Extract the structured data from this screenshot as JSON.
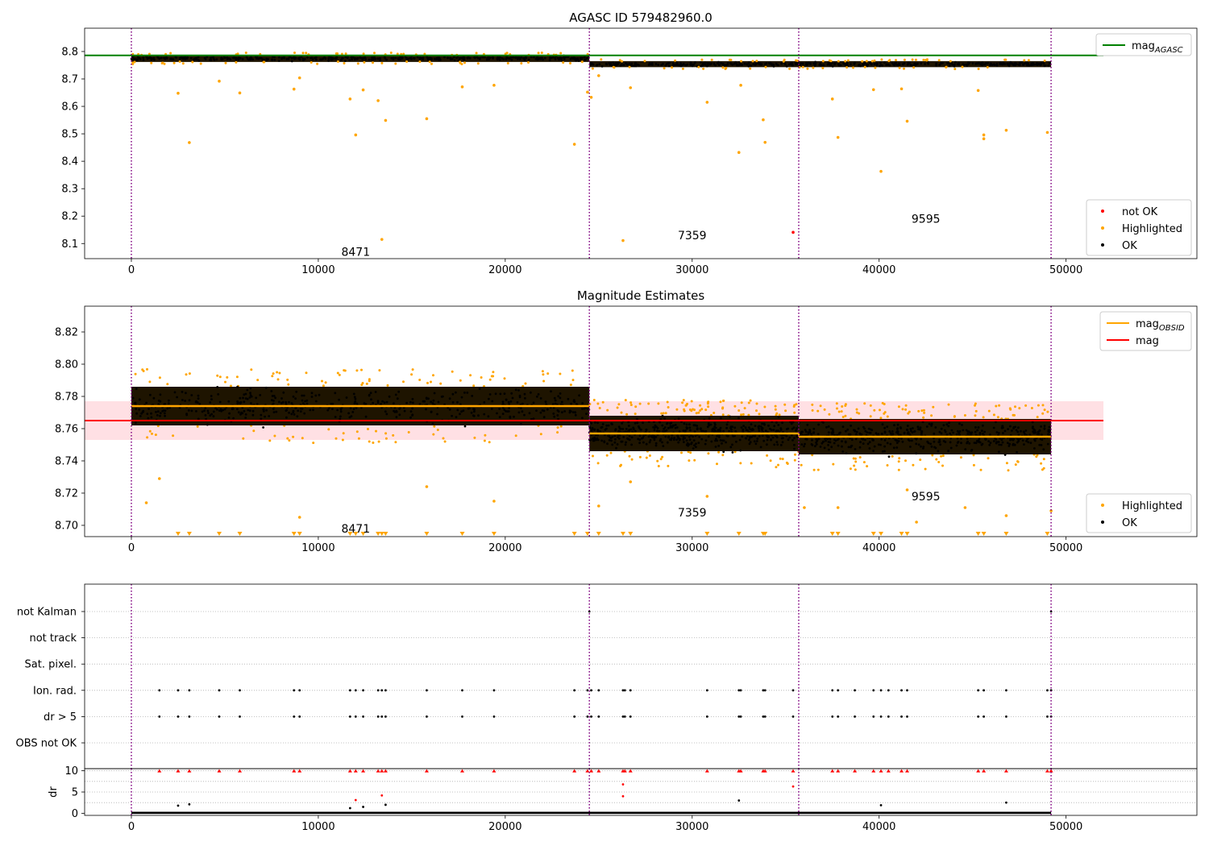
{
  "chart_data": [
    {
      "type": "scatter",
      "title": "AGASC ID 579482960.0",
      "xlim": [
        -2500,
        57000
      ],
      "ylim": [
        8.045,
        8.885
      ],
      "xticks": [
        0,
        10000,
        20000,
        30000,
        40000,
        50000
      ],
      "yticks": [
        8.1,
        8.2,
        8.3,
        8.4,
        8.5,
        8.6,
        8.7,
        8.8
      ],
      "ytick_labels": [
        "8.1",
        "8.2",
        "8.3",
        "8.4",
        "8.5",
        "8.6",
        "8.7",
        "8.8"
      ],
      "grid": false,
      "legends": [
        {
          "placement": "upper right",
          "entries": [
            {
              "label": "mag",
              "subscript": "AGASC",
              "color": "#008000",
              "marker": "line"
            }
          ]
        },
        {
          "placement": "lower right",
          "entries": [
            {
              "label": "not OK",
              "color": "#ff0000",
              "marker": "dot"
            },
            {
              "label": "Highlighted",
              "color": "#ffa500",
              "marker": "dot"
            },
            {
              "label": "OK",
              "color": "#000000",
              "marker": "dot"
            }
          ]
        }
      ],
      "obs_boundaries": [
        0,
        24500,
        35700,
        49200
      ],
      "obs_labels": [
        {
          "text": "8471",
          "x": 12000,
          "y": 8.07
        },
        {
          "text": "7359",
          "x": 30000,
          "y": 8.13
        },
        {
          "text": "9595",
          "x": 42500,
          "y": 8.19
        }
      ],
      "reference_lines": [
        {
          "name": "mag_AGASC",
          "y": 8.786,
          "x": [
            -2500,
            52000
          ],
          "color": "#008000"
        }
      ],
      "ok_band_segments": [
        {
          "x": [
            0,
            24500
          ],
          "center": 8.775,
          "half_width": 0.013
        },
        {
          "x": [
            24500,
            49200
          ],
          "center": 8.754,
          "half_width": 0.011
        }
      ],
      "highlighted_points": [
        {
          "x": 2500,
          "y": 8.648
        },
        {
          "x": 3100,
          "y": 8.468
        },
        {
          "x": 4700,
          "y": 8.692
        },
        {
          "x": 5800,
          "y": 8.649
        },
        {
          "x": 8700,
          "y": 8.663
        },
        {
          "x": 9000,
          "y": 8.704
        },
        {
          "x": 11700,
          "y": 8.627
        },
        {
          "x": 12000,
          "y": 8.496
        },
        {
          "x": 12400,
          "y": 8.66
        },
        {
          "x": 13200,
          "y": 8.621
        },
        {
          "x": 13400,
          "y": 8.115
        },
        {
          "x": 13600,
          "y": 8.549
        },
        {
          "x": 15800,
          "y": 8.555
        },
        {
          "x": 17700,
          "y": 8.671
        },
        {
          "x": 19400,
          "y": 8.677
        },
        {
          "x": 23700,
          "y": 8.462
        },
        {
          "x": 24400,
          "y": 8.652
        },
        {
          "x": 24600,
          "y": 8.633
        },
        {
          "x": 25000,
          "y": 8.712
        },
        {
          "x": 26300,
          "y": 8.111
        },
        {
          "x": 26700,
          "y": 8.668
        },
        {
          "x": 30800,
          "y": 8.615
        },
        {
          "x": 32500,
          "y": 8.432
        },
        {
          "x": 32600,
          "y": 8.677
        },
        {
          "x": 33800,
          "y": 8.551
        },
        {
          "x": 33900,
          "y": 8.469
        },
        {
          "x": 37500,
          "y": 8.627
        },
        {
          "x": 37800,
          "y": 8.487
        },
        {
          "x": 39700,
          "y": 8.661
        },
        {
          "x": 40100,
          "y": 8.363
        },
        {
          "x": 41200,
          "y": 8.664
        },
        {
          "x": 41500,
          "y": 8.546
        },
        {
          "x": 45300,
          "y": 8.658
        },
        {
          "x": 45600,
          "y": 8.496
        },
        {
          "x": 45600,
          "y": 8.482
        },
        {
          "x": 46800,
          "y": 8.513
        },
        {
          "x": 49000,
          "y": 8.505
        }
      ],
      "not_ok_points": [
        {
          "x": 35400,
          "y": 8.141
        }
      ]
    },
    {
      "type": "scatter",
      "title": "Magnitude Estimates",
      "xlim": [
        -2500,
        57000
      ],
      "ylim": [
        8.693,
        8.836
      ],
      "xticks": [
        0,
        10000,
        20000,
        30000,
        40000,
        50000
      ],
      "yticks": [
        8.7,
        8.72,
        8.74,
        8.76,
        8.78,
        8.8,
        8.82
      ],
      "ytick_labels": [
        "8.70",
        "8.72",
        "8.74",
        "8.76",
        "8.78",
        "8.80",
        "8.82"
      ],
      "grid": false,
      "legends": [
        {
          "placement": "upper right",
          "entries": [
            {
              "label": "mag",
              "subscript": "OBSID",
              "color": "#ffa500",
              "marker": "line"
            },
            {
              "label": "mag",
              "subscript": "",
              "color": "#ff0000",
              "marker": "line"
            }
          ]
        },
        {
          "placement": "lower right",
          "entries": [
            {
              "label": "Highlighted",
              "color": "#ffa500",
              "marker": "dot"
            },
            {
              "label": "OK",
              "color": "#000000",
              "marker": "dot"
            }
          ]
        }
      ],
      "obs_boundaries": [
        0,
        24500,
        35700,
        49200
      ],
      "obs_labels": [
        {
          "text": "8471",
          "x": 12000,
          "y": 8.698
        },
        {
          "text": "7359",
          "x": 30000,
          "y": 8.708
        },
        {
          "text": "9595",
          "x": 42500,
          "y": 8.718
        }
      ],
      "mag": {
        "y": 8.765,
        "band": [
          8.753,
          8.777
        ],
        "x": [
          -2500,
          52000
        ]
      },
      "mag_obsid": [
        {
          "x": [
            0,
            24500
          ],
          "y": 8.774
        },
        {
          "x": [
            24500,
            35700
          ],
          "y": 8.757
        },
        {
          "x": [
            35700,
            49200
          ],
          "y": 8.755
        }
      ],
      "ok_band_segments": [
        {
          "x": [
            0,
            24500
          ],
          "center": 8.774,
          "half_width": 0.012
        },
        {
          "x": [
            24500,
            35700
          ],
          "center": 8.757,
          "half_width": 0.011
        },
        {
          "x": [
            35700,
            49200
          ],
          "center": 8.755,
          "half_width": 0.011
        }
      ],
      "clipped_markers_x": [
        2500,
        3100,
        4700,
        5800,
        8700,
        9000,
        11700,
        12000,
        12400,
        13200,
        13400,
        13600,
        15800,
        17700,
        19400,
        23700,
        24400,
        25000,
        26300,
        26700,
        30800,
        32500,
        33800,
        33900,
        37500,
        37800,
        39700,
        40100,
        41200,
        41500,
        45300,
        45600,
        46800,
        49000
      ],
      "highlighted_points": [
        {
          "x": 800,
          "y": 8.714
        },
        {
          "x": 1500,
          "y": 8.729
        },
        {
          "x": 9000,
          "y": 8.705
        },
        {
          "x": 15800,
          "y": 8.724
        },
        {
          "x": 19400,
          "y": 8.715
        },
        {
          "x": 25000,
          "y": 8.712
        },
        {
          "x": 26700,
          "y": 8.727
        },
        {
          "x": 30800,
          "y": 8.718
        },
        {
          "x": 36000,
          "y": 8.711
        },
        {
          "x": 37800,
          "y": 8.711
        },
        {
          "x": 41500,
          "y": 8.722
        },
        {
          "x": 42000,
          "y": 8.702
        },
        {
          "x": 44600,
          "y": 8.711
        },
        {
          "x": 46800,
          "y": 8.706
        },
        {
          "x": 49200,
          "y": 8.709
        }
      ]
    },
    {
      "type": "scatter",
      "title": "",
      "xlim": [
        -2500,
        57000
      ],
      "xticks": [
        0,
        10000,
        20000,
        30000,
        40000,
        50000
      ],
      "grid": true,
      "flag_rows": [
        "not Kalman",
        "not track",
        "Sat. pixel.",
        "Ion. rad.",
        "dr > 5",
        "OBS not OK"
      ],
      "obs_boundaries": [
        0,
        24500,
        35700,
        49200
      ],
      "flag_x": [
        1500,
        2500,
        3100,
        4700,
        5800,
        8700,
        9000,
        11700,
        12000,
        12400,
        13200,
        13400,
        13600,
        15800,
        17700,
        19400,
        23700,
        24400,
        24600,
        25000,
        26300,
        26400,
        26700,
        30800,
        32500,
        32600,
        33800,
        33900,
        35400,
        37500,
        37800,
        38700,
        39700,
        40100,
        40500,
        41200,
        41500,
        45300,
        45600,
        46800,
        49000,
        49200
      ]
    },
    {
      "type": "scatter",
      "title": "",
      "ylabel": "dr",
      "xlim": [
        -2500,
        57000
      ],
      "ylim": [
        -0.5,
        10.5
      ],
      "xticks": [
        0,
        10000,
        20000,
        30000,
        40000,
        50000
      ],
      "yticks": [
        0,
        5,
        10
      ],
      "grid": true,
      "obs_boundaries": [
        0,
        24500,
        35700,
        49200
      ],
      "dr_red_points": [
        {
          "x": 12000,
          "y": 3.1
        },
        {
          "x": 13400,
          "y": 4.2
        },
        {
          "x": 26300,
          "y": 6.8
        },
        {
          "x": 26300,
          "y": 4.0
        },
        {
          "x": 35400,
          "y": 6.3
        }
      ],
      "dr_black_points": [
        {
          "x": 2500,
          "y": 1.8
        },
        {
          "x": 3100,
          "y": 2.1
        },
        {
          "x": 11700,
          "y": 1.2
        },
        {
          "x": 12400,
          "y": 1.5
        },
        {
          "x": 13600,
          "y": 2.0
        },
        {
          "x": 32500,
          "y": 3.0
        },
        {
          "x": 40100,
          "y": 1.9
        },
        {
          "x": 46800,
          "y": 2.5
        }
      ]
    }
  ]
}
